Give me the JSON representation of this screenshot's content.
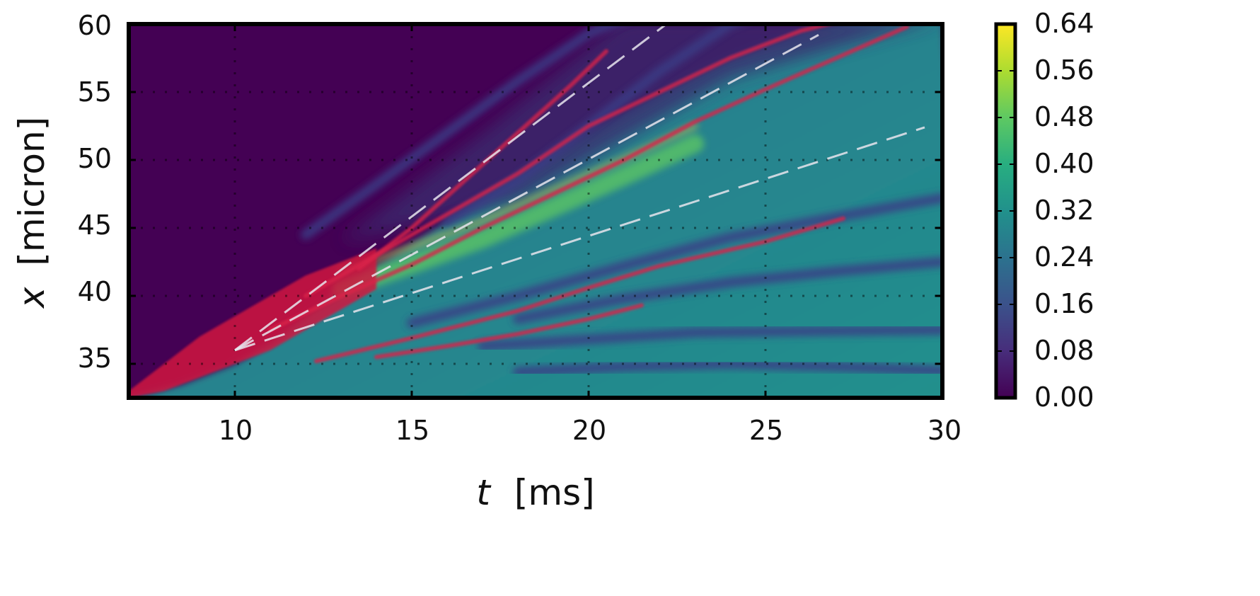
{
  "chart_data": {
    "type": "heatmap",
    "title": "",
    "xlabel": {
      "symbol": "t",
      "unit": "[ms]"
    },
    "ylabel": {
      "symbol": "x",
      "unit": "[micron]"
    },
    "xlim": [
      7,
      30
    ],
    "ylim": [
      32.5,
      60
    ],
    "xticks": [
      "10",
      "15",
      "20",
      "25",
      "30"
    ],
    "yticks": [
      "35",
      "40",
      "45",
      "50",
      "55",
      "60"
    ],
    "grid": true,
    "colormap": "viridis",
    "colorbar": {
      "ticks": [
        "0.00",
        "0.08",
        "0.16",
        "0.24",
        "0.32",
        "0.40",
        "0.48",
        "0.56",
        "0.64"
      ],
      "range": [
        0,
        0.64
      ],
      "colors": [
        "#440154",
        "#472d7b",
        "#3b528b",
        "#2c728e",
        "#21918c",
        "#28ae80",
        "#5ec962",
        "#addc30",
        "#fde725"
      ]
    },
    "background_color": "#440154",
    "front": {
      "t": [
        7.0,
        8.5,
        10.0,
        11.0,
        12.0,
        13.0,
        14.5,
        16.0,
        18.0,
        20.0,
        22.0,
        24.0,
        26.0,
        28.0,
        30.0
      ],
      "x": [
        32.5,
        33.5,
        35.0,
        36.5,
        38.5,
        40.5,
        43.0,
        45.5,
        49.0,
        52.0,
        55.0,
        57.5,
        59.5,
        60.5,
        61.0
      ]
    },
    "red_band": {
      "t": [
        7.0,
        8.0,
        9.0,
        10.0,
        11.0,
        12.0,
        13.0,
        14.0
      ],
      "x_low": [
        32.5,
        33.0,
        34.0,
        35.0,
        36.0,
        37.5,
        39.0,
        40.5
      ],
      "x_high": [
        33.0,
        35.0,
        37.0,
        38.5,
        40.0,
        41.5,
        42.5,
        43.5
      ]
    },
    "red_ridges": [
      {
        "t": [
          12.3,
          15,
          18,
          20,
          22,
          25,
          27.2
        ],
        "x": [
          35.2,
          36.9,
          38.9,
          40.6,
          42.2,
          44.0,
          45.7
        ]
      },
      {
        "t": [
          14,
          16,
          18,
          20,
          21.5
        ],
        "x": [
          35.5,
          36.3,
          37.2,
          38.3,
          39.3
        ]
      },
      {
        "t": [
          11,
          13,
          15,
          17,
          19,
          21,
          23,
          25,
          27,
          29
        ],
        "x": [
          37.5,
          40.0,
          42.3,
          45.0,
          47.5,
          50.0,
          52.8,
          55.2,
          57.5,
          59.8
        ]
      },
      {
        "t": [
          12,
          14,
          16,
          18,
          20,
          22,
          24,
          26,
          27.5
        ],
        "x": [
          40.0,
          43.0,
          46.0,
          49.0,
          52.5,
          55.0,
          57.5,
          59.5,
          60.5
        ]
      },
      {
        "t": [
          13.5,
          15,
          16.5,
          18,
          19.5,
          20.5
        ],
        "x": [
          42.0,
          45.0,
          48.5,
          52.0,
          55.5,
          58.0
        ]
      }
    ],
    "dark_bands": [
      {
        "t": [
          15,
          18,
          21,
          24,
          27,
          30
        ],
        "x": [
          38.0,
          40.0,
          42.2,
          44.3,
          45.8,
          47.2
        ]
      },
      {
        "t": [
          18,
          21,
          24,
          27,
          30
        ],
        "x": [
          38.3,
          39.8,
          41.0,
          41.8,
          42.5
        ]
      },
      {
        "t": [
          17,
          20,
          23,
          26,
          30
        ],
        "x": [
          36.3,
          36.8,
          37.3,
          37.4,
          37.5
        ]
      },
      {
        "t": [
          18,
          21,
          24,
          27,
          30
        ],
        "x": [
          34.4,
          34.8,
          35.0,
          34.8,
          34.5
        ]
      },
      {
        "t": [
          12,
          14,
          16,
          18,
          20,
          22
        ],
        "x": [
          44.5,
          48.2,
          52.0,
          55.8,
          59.3,
          61.5
        ]
      },
      {
        "t": [
          16,
          18,
          20,
          22,
          24,
          26
        ],
        "x": [
          45.5,
          48.5,
          52.5,
          56.5,
          60.0,
          62.0
        ]
      }
    ],
    "bright_band": {
      "t": [
        13,
        15,
        17,
        19,
        21,
        23
      ],
      "x": [
        40.5,
        42.3,
        44.2,
        46.5,
        48.8,
        51.2
      ]
    },
    "dashed_lines": [
      {
        "t": [
          10,
          22.2
        ],
        "x": [
          36,
          60
        ]
      },
      {
        "t": [
          10,
          26.5
        ],
        "x": [
          36,
          59.2
        ]
      },
      {
        "t": [
          10,
          29.5
        ],
        "x": [
          36,
          52.4
        ]
      }
    ]
  }
}
